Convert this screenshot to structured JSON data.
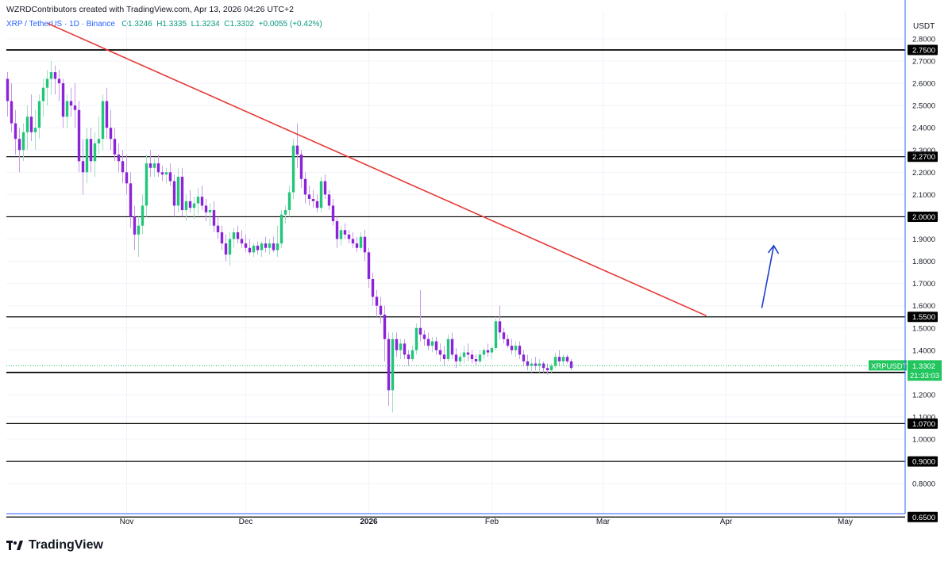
{
  "header": {
    "credit": "WZRDContributors created with TradingView.com, Apr 13, 2026 04:26 UTC+2",
    "symbol": "XRP / TetherUS · 1D · Binance",
    "open": "O1.3246",
    "high": "H1.3335",
    "low": "L1.3234",
    "close": "C1.3302",
    "change": "+0.0055 (+0.42%)"
  },
  "colors": {
    "up": "#22c57a",
    "down": "#8b24d8",
    "up_wick": "#9fe0c0",
    "down_wick": "#c79ae6",
    "trendline": "#e53935",
    "arrow": "#1e40c8",
    "axis": "#2962ff",
    "last_price": "#22c55e"
  },
  "brand": {
    "name": "TradingView"
  },
  "price_tag": {
    "symbol": "XRPUSDT",
    "price": "1.3302",
    "countdown": "21:33:03"
  },
  "chart_data": {
    "type": "candlestick",
    "currency": "USDT",
    "ylim": [
      0.6,
      2.88
    ],
    "y_ticks": [
      "0.8000",
      "1.0000",
      "1.1000",
      "1.2000",
      "1.4000",
      "1.5000",
      "1.6000",
      "1.7000",
      "1.8000",
      "1.9000",
      "2.1000",
      "2.2000",
      "2.3000",
      "2.4000",
      "2.5000",
      "2.6000",
      "2.7000",
      "2.8000"
    ],
    "x_labels": [
      {
        "label": "Nov",
        "day": 31,
        "bold": false
      },
      {
        "label": "Dec",
        "day": 61,
        "bold": false
      },
      {
        "label": "2026",
        "day": 92,
        "bold": true
      },
      {
        "label": "Feb",
        "day": 123,
        "bold": false
      },
      {
        "label": "Mar",
        "day": 151,
        "bold": false
      },
      {
        "label": "Apr",
        "day": 182,
        "bold": false
      },
      {
        "label": "May",
        "day": 212,
        "bold": false
      }
    ],
    "levels": [
      {
        "value": 2.75,
        "label": "2.7500",
        "thick": true
      },
      {
        "value": 2.27,
        "label": "2.2700",
        "thick": false
      },
      {
        "value": 2.0,
        "label": "2.0000",
        "thick": false
      },
      {
        "value": 1.55,
        "label": "1.5500",
        "thick": false
      },
      {
        "value": 1.3,
        "label": "1.3000",
        "thick": true
      },
      {
        "value": 1.07,
        "label": "1.0700",
        "thick": false
      },
      {
        "value": 0.9,
        "label": "0.9000",
        "thick": false
      },
      {
        "value": 0.65,
        "label": "0.6500",
        "thick": false
      }
    ],
    "last_price": 1.3302,
    "trendline": {
      "from": {
        "day": 11,
        "price": 2.87
      },
      "to": {
        "day": 177,
        "price": 1.555
      }
    },
    "arrow": {
      "from": {
        "day": 191,
        "price": 1.59
      },
      "to": {
        "day": 194,
        "price": 1.87
      }
    },
    "candles": [
      [
        1,
        2.62,
        2.65,
        2.45,
        2.52
      ],
      [
        2,
        2.52,
        2.6,
        2.38,
        2.42
      ],
      [
        3,
        2.42,
        2.48,
        2.28,
        2.35
      ],
      [
        4,
        2.35,
        2.4,
        2.2,
        2.3
      ],
      [
        5,
        2.3,
        2.42,
        2.25,
        2.38
      ],
      [
        6,
        2.38,
        2.5,
        2.3,
        2.45
      ],
      [
        7,
        2.45,
        2.55,
        2.34,
        2.38
      ],
      [
        8,
        2.38,
        2.48,
        2.3,
        2.4
      ],
      [
        9,
        2.4,
        2.55,
        2.35,
        2.52
      ],
      [
        10,
        2.52,
        2.62,
        2.45,
        2.58
      ],
      [
        11,
        2.58,
        2.66,
        2.5,
        2.62
      ],
      [
        12,
        2.62,
        2.7,
        2.55,
        2.65
      ],
      [
        13,
        2.65,
        2.68,
        2.55,
        2.62
      ],
      [
        14,
        2.62,
        2.66,
        2.52,
        2.6
      ],
      [
        15,
        2.6,
        2.62,
        2.4,
        2.45
      ],
      [
        16,
        2.45,
        2.55,
        2.4,
        2.52
      ],
      [
        17,
        2.52,
        2.58,
        2.45,
        2.5
      ],
      [
        18,
        2.5,
        2.6,
        2.4,
        2.48
      ],
      [
        19,
        2.48,
        2.52,
        2.2,
        2.25
      ],
      [
        20,
        2.25,
        2.35,
        2.1,
        2.2
      ],
      [
        21,
        2.2,
        2.4,
        2.15,
        2.35
      ],
      [
        22,
        2.35,
        2.4,
        2.2,
        2.25
      ],
      [
        23,
        2.25,
        2.38,
        2.18,
        2.33
      ],
      [
        24,
        2.33,
        2.45,
        2.28,
        2.35
      ],
      [
        25,
        2.35,
        2.55,
        2.3,
        2.52
      ],
      [
        26,
        2.52,
        2.58,
        2.35,
        2.4
      ],
      [
        27,
        2.4,
        2.48,
        2.3,
        2.35
      ],
      [
        28,
        2.35,
        2.4,
        2.25,
        2.28
      ],
      [
        29,
        2.28,
        2.33,
        2.2,
        2.25
      ],
      [
        30,
        2.25,
        2.3,
        2.15,
        2.2
      ],
      [
        31,
        2.2,
        2.28,
        2.1,
        2.15
      ],
      [
        32,
        2.15,
        2.2,
        1.95,
        2.0
      ],
      [
        33,
        2.0,
        2.05,
        1.85,
        1.92
      ],
      [
        34,
        1.92,
        2.0,
        1.82,
        1.96
      ],
      [
        35,
        1.96,
        2.1,
        1.92,
        2.05
      ],
      [
        36,
        2.05,
        2.28,
        2.0,
        2.24
      ],
      [
        37,
        2.24,
        2.3,
        2.18,
        2.22
      ],
      [
        38,
        2.22,
        2.26,
        2.18,
        2.24
      ],
      [
        39,
        2.24,
        2.28,
        2.18,
        2.2
      ],
      [
        40,
        2.2,
        2.23,
        2.16,
        2.19
      ],
      [
        41,
        2.19,
        2.22,
        2.15,
        2.2
      ],
      [
        42,
        2.2,
        2.24,
        2.14,
        2.16
      ],
      [
        43,
        2.16,
        2.19,
        2.0,
        2.05
      ],
      [
        44,
        2.05,
        2.22,
        2.02,
        2.18
      ],
      [
        45,
        2.18,
        2.22,
        2.0,
        2.03
      ],
      [
        46,
        2.03,
        2.1,
        1.98,
        2.07
      ],
      [
        47,
        2.07,
        2.12,
        2.02,
        2.04
      ],
      [
        48,
        2.04,
        2.09,
        1.99,
        2.06
      ],
      [
        49,
        2.06,
        2.13,
        2.01,
        2.09
      ],
      [
        50,
        2.09,
        2.14,
        2.03,
        2.05
      ],
      [
        51,
        2.05,
        2.08,
        1.98,
        2.02
      ],
      [
        52,
        2.02,
        2.06,
        1.96,
        2.03
      ],
      [
        53,
        2.03,
        2.07,
        1.93,
        1.96
      ],
      [
        54,
        1.96,
        2.0,
        1.9,
        1.93
      ],
      [
        55,
        1.93,
        1.96,
        1.85,
        1.88
      ],
      [
        56,
        1.88,
        1.92,
        1.8,
        1.83
      ],
      [
        57,
        1.83,
        1.93,
        1.78,
        1.9
      ],
      [
        58,
        1.9,
        1.95,
        1.86,
        1.93
      ],
      [
        59,
        1.93,
        1.96,
        1.88,
        1.9
      ],
      [
        60,
        1.9,
        1.94,
        1.86,
        1.88
      ],
      [
        61,
        1.88,
        1.92,
        1.84,
        1.86
      ],
      [
        62,
        1.86,
        1.9,
        1.83,
        1.84
      ],
      [
        63,
        1.84,
        1.88,
        1.82,
        1.87
      ],
      [
        64,
        1.87,
        1.89,
        1.83,
        1.85
      ],
      [
        65,
        1.85,
        1.89,
        1.82,
        1.88
      ],
      [
        66,
        1.88,
        1.91,
        1.84,
        1.86
      ],
      [
        67,
        1.86,
        1.9,
        1.83,
        1.88
      ],
      [
        68,
        1.88,
        1.91,
        1.84,
        1.85
      ],
      [
        69,
        1.85,
        1.96,
        1.82,
        1.88
      ],
      [
        70,
        1.88,
        2.03,
        1.86,
        2.01
      ],
      [
        71,
        2.01,
        2.05,
        1.97,
        2.03
      ],
      [
        72,
        2.03,
        2.14,
        2.0,
        2.11
      ],
      [
        73,
        2.11,
        2.35,
        2.08,
        2.32
      ],
      [
        74,
        2.32,
        2.42,
        2.22,
        2.28
      ],
      [
        75,
        2.28,
        2.3,
        2.13,
        2.17
      ],
      [
        76,
        2.17,
        2.2,
        2.06,
        2.1
      ],
      [
        77,
        2.1,
        2.14,
        2.05,
        2.08
      ],
      [
        78,
        2.08,
        2.12,
        2.04,
        2.07
      ],
      [
        79,
        2.07,
        2.1,
        2.02,
        2.04
      ],
      [
        80,
        2.04,
        2.18,
        2.02,
        2.16
      ],
      [
        81,
        2.16,
        2.19,
        2.08,
        2.1
      ],
      [
        82,
        2.1,
        2.12,
        2.03,
        2.05
      ],
      [
        83,
        2.05,
        2.08,
        1.96,
        1.98
      ],
      [
        84,
        1.98,
        2.0,
        1.86,
        1.9
      ],
      [
        85,
        1.9,
        1.96,
        1.87,
        1.94
      ],
      [
        86,
        1.94,
        1.97,
        1.9,
        1.92
      ],
      [
        87,
        1.92,
        1.94,
        1.88,
        1.9
      ],
      [
        88,
        1.9,
        1.93,
        1.86,
        1.88
      ],
      [
        89,
        1.88,
        1.91,
        1.84,
        1.86
      ],
      [
        90,
        1.86,
        1.93,
        1.85,
        1.91
      ],
      [
        91,
        1.91,
        1.94,
        1.8,
        1.84
      ],
      [
        92,
        1.84,
        1.86,
        1.68,
        1.72
      ],
      [
        93,
        1.72,
        1.75,
        1.6,
        1.64
      ],
      [
        94,
        1.64,
        1.67,
        1.55,
        1.6
      ],
      [
        95,
        1.6,
        1.64,
        1.52,
        1.56
      ],
      [
        96,
        1.56,
        1.6,
        1.35,
        1.45
      ],
      [
        97,
        1.45,
        1.48,
        1.15,
        1.22
      ],
      [
        98,
        1.22,
        1.48,
        1.12,
        1.45
      ],
      [
        99,
        1.45,
        1.48,
        1.37,
        1.4
      ],
      [
        100,
        1.4,
        1.45,
        1.36,
        1.43
      ],
      [
        101,
        1.43,
        1.45,
        1.36,
        1.38
      ],
      [
        102,
        1.38,
        1.4,
        1.33,
        1.36
      ],
      [
        103,
        1.36,
        1.42,
        1.35,
        1.4
      ],
      [
        104,
        1.4,
        1.52,
        1.38,
        1.5
      ],
      [
        105,
        1.5,
        1.67,
        1.44,
        1.47
      ],
      [
        106,
        1.47,
        1.49,
        1.42,
        1.45
      ],
      [
        107,
        1.45,
        1.48,
        1.4,
        1.42
      ],
      [
        108,
        1.42,
        1.46,
        1.39,
        1.44
      ],
      [
        109,
        1.44,
        1.46,
        1.38,
        1.4
      ],
      [
        110,
        1.4,
        1.43,
        1.35,
        1.38
      ],
      [
        111,
        1.38,
        1.42,
        1.33,
        1.36
      ],
      [
        112,
        1.36,
        1.47,
        1.35,
        1.45
      ],
      [
        113,
        1.45,
        1.48,
        1.36,
        1.38
      ],
      [
        114,
        1.38,
        1.41,
        1.32,
        1.35
      ],
      [
        115,
        1.35,
        1.39,
        1.33,
        1.37
      ],
      [
        116,
        1.37,
        1.42,
        1.34,
        1.39
      ],
      [
        117,
        1.39,
        1.43,
        1.35,
        1.38
      ],
      [
        118,
        1.38,
        1.4,
        1.34,
        1.36
      ],
      [
        119,
        1.36,
        1.38,
        1.33,
        1.35
      ],
      [
        120,
        1.35,
        1.4,
        1.34,
        1.38
      ],
      [
        121,
        1.38,
        1.41,
        1.36,
        1.4
      ],
      [
        122,
        1.4,
        1.43,
        1.37,
        1.39
      ],
      [
        123,
        1.39,
        1.42,
        1.36,
        1.41
      ],
      [
        124,
        1.41,
        1.55,
        1.4,
        1.53
      ],
      [
        125,
        1.53,
        1.6,
        1.45,
        1.48
      ],
      [
        126,
        1.48,
        1.5,
        1.43,
        1.45
      ],
      [
        127,
        1.45,
        1.47,
        1.41,
        1.42
      ],
      [
        128,
        1.42,
        1.45,
        1.38,
        1.4
      ],
      [
        129,
        1.4,
        1.44,
        1.37,
        1.42
      ],
      [
        130,
        1.42,
        1.44,
        1.36,
        1.38
      ],
      [
        131,
        1.38,
        1.4,
        1.33,
        1.35
      ],
      [
        132,
        1.35,
        1.38,
        1.31,
        1.33
      ],
      [
        133,
        1.33,
        1.36,
        1.3,
        1.34
      ],
      [
        134,
        1.34,
        1.37,
        1.31,
        1.33
      ],
      [
        135,
        1.33,
        1.36,
        1.3,
        1.34
      ],
      [
        136,
        1.34,
        1.35,
        1.3,
        1.32
      ],
      [
        137,
        1.32,
        1.34,
        1.29,
        1.31
      ],
      [
        138,
        1.31,
        1.34,
        1.3,
        1.33
      ],
      [
        139,
        1.33,
        1.39,
        1.32,
        1.37
      ],
      [
        140,
        1.37,
        1.4,
        1.33,
        1.35
      ],
      [
        141,
        1.35,
        1.38,
        1.33,
        1.37
      ],
      [
        142,
        1.37,
        1.38,
        1.34,
        1.35
      ],
      [
        143,
        1.35,
        1.36,
        1.31,
        1.32
      ]
    ]
  }
}
